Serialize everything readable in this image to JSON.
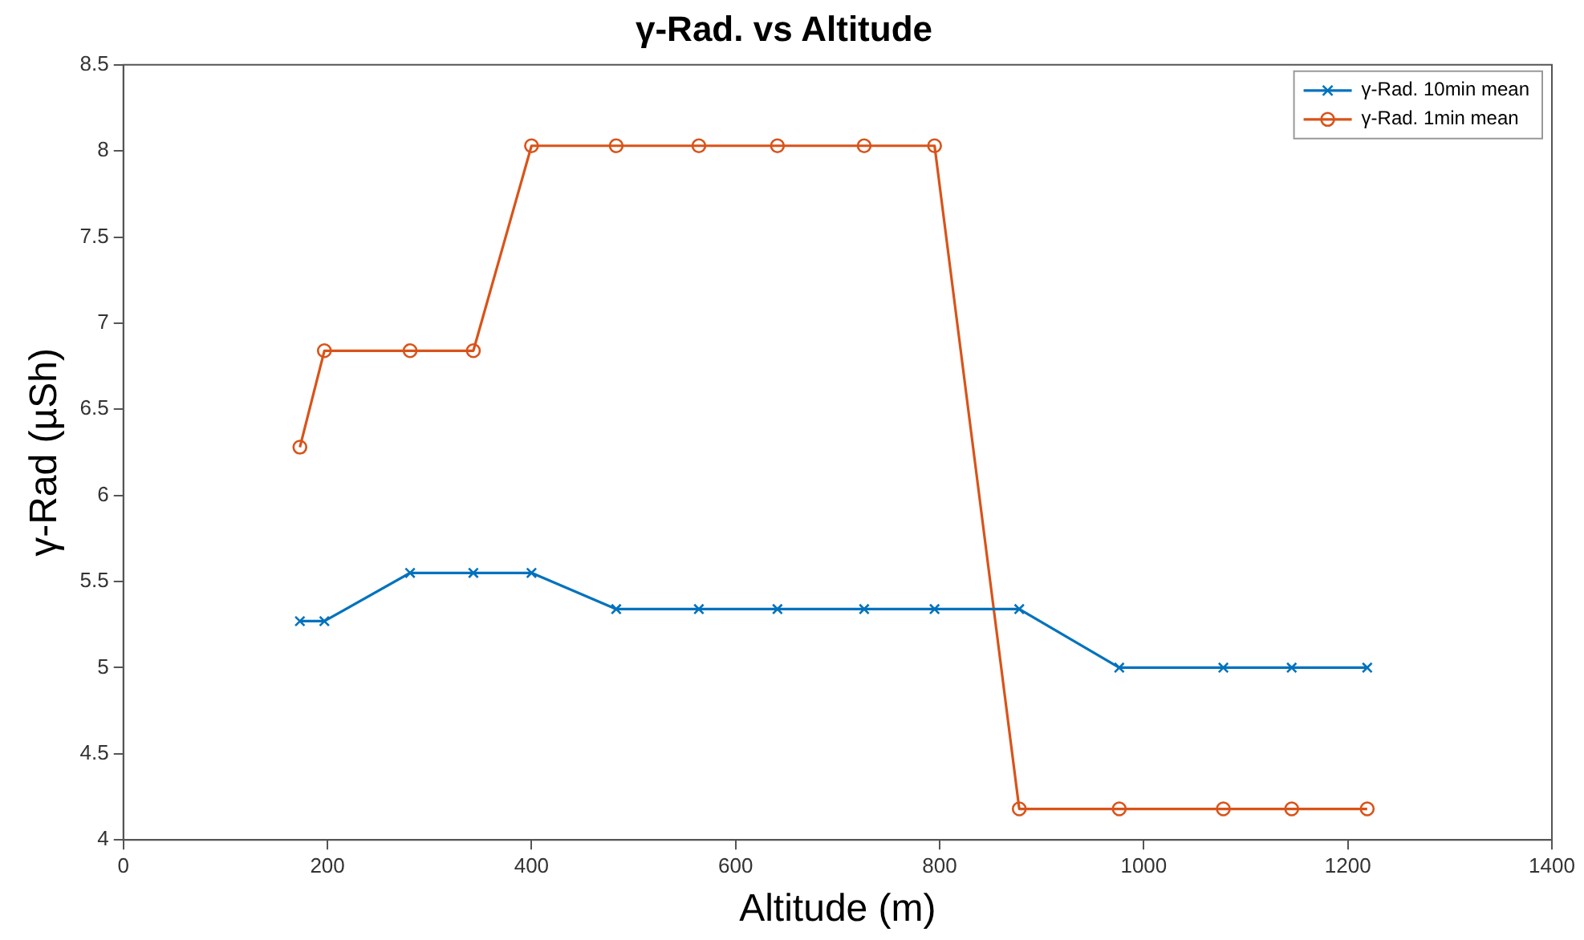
{
  "chart_data": {
    "type": "line",
    "title": "γ-Rad. vs Altitude",
    "xlabel": "Altitude (m)",
    "ylabel": "γ-Rad (µSh)",
    "x": [
      173,
      197,
      281,
      343,
      400,
      483,
      564,
      641,
      726,
      795,
      878,
      976,
      1078,
      1145,
      1219
    ],
    "series": [
      {
        "name": "γ-Rad. 10min mean",
        "color": "#0072bd",
        "marker": "cross",
        "values": [
          5.27,
          5.27,
          5.55,
          5.55,
          5.55,
          5.34,
          5.34,
          5.34,
          5.34,
          5.34,
          5.34,
          5.0,
          5.0,
          5.0,
          5.0
        ]
      },
      {
        "name": "γ-Rad. 1min mean",
        "color": "#d95319",
        "marker": "circle",
        "values": [
          6.28,
          6.84,
          6.84,
          6.84,
          8.03,
          8.03,
          8.03,
          8.03,
          8.03,
          8.03,
          4.18,
          4.18,
          4.18,
          4.18,
          4.18
        ]
      }
    ],
    "xlim": [
      0,
      1400
    ],
    "xticks": [
      0,
      200,
      400,
      600,
      800,
      1000,
      1200,
      1400
    ],
    "ylim": [
      4,
      8.5
    ],
    "yticks": [
      4,
      4.5,
      5,
      5.5,
      6,
      6.5,
      7,
      7.5,
      8,
      8.5
    ],
    "grid": false,
    "legend": "top right",
    "line_style": "solid"
  }
}
